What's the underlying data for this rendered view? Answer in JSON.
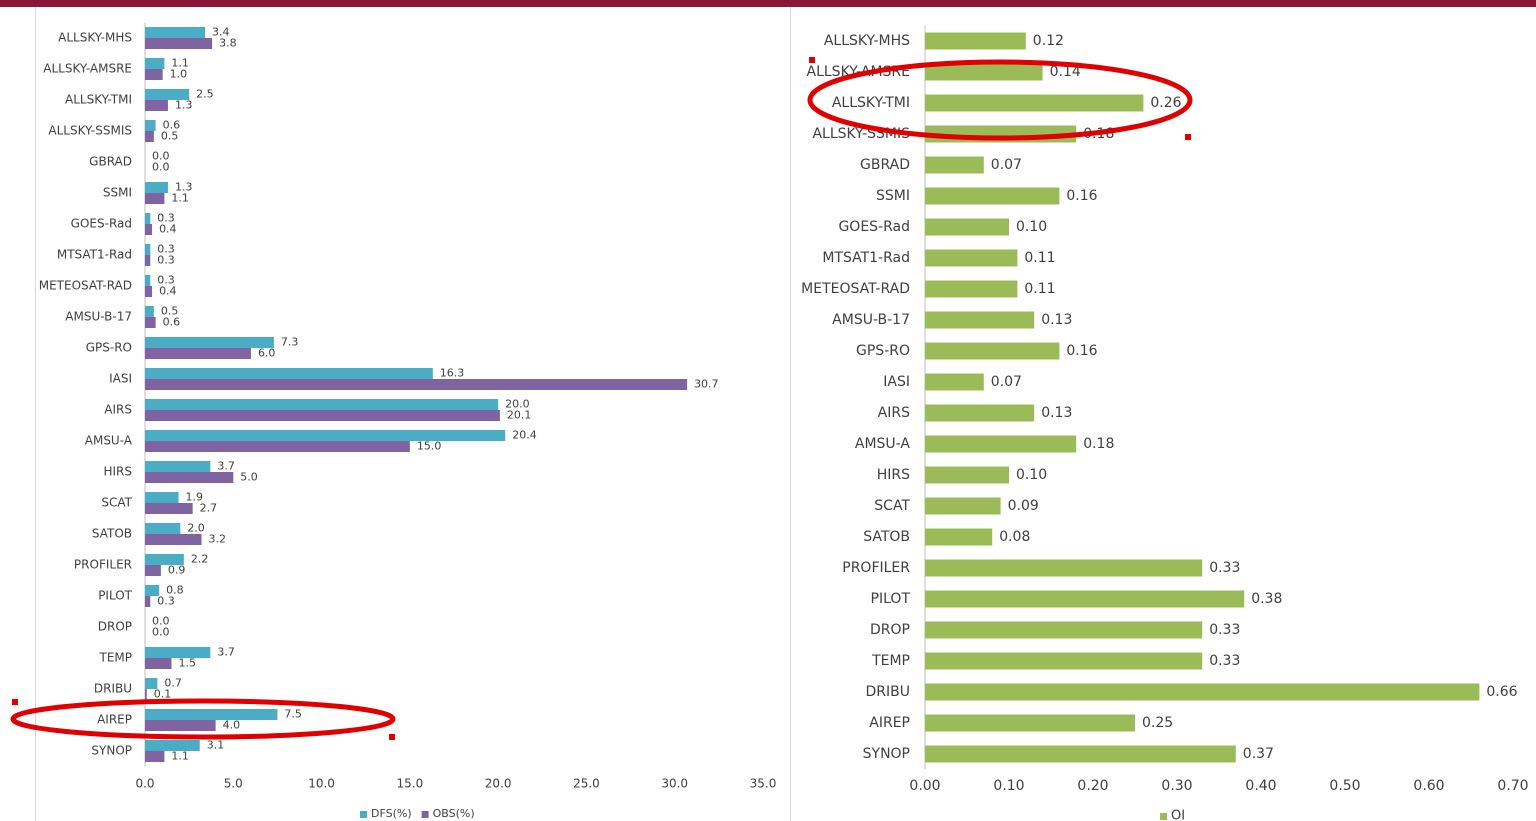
{
  "chart_data": [
    {
      "type": "barh",
      "categories": [
        "ALLSKY-MHS",
        "ALLSKY-AMSRE",
        "ALLSKY-TMI",
        "ALLSKY-SSMIS",
        "GBRAD",
        "SSMI",
        "GOES-Rad",
        "MTSAT1-Rad",
        "METEOSAT-RAD",
        "AMSU-B-17",
        "GPS-RO",
        "IASI",
        "AIRS",
        "AMSU-A",
        "HIRS",
        "SCAT",
        "SATOB",
        "PROFILER",
        "PILOT",
        "DROP",
        "TEMP",
        "DRIBU",
        "AIREP",
        "SYNOP"
      ],
      "series": [
        {
          "name": "DFS(%)",
          "color": "#4bacc6",
          "values": [
            3.4,
            1.1,
            2.5,
            0.6,
            0,
            1.3,
            0.3,
            0.3,
            0.3,
            0.5,
            7.3,
            16.3,
            20,
            20.4,
            3.7,
            1.9,
            2,
            2.2,
            0.8,
            0,
            3.7,
            0.7,
            7.5,
            3.1
          ],
          "value_labels": [
            "3.4",
            "1.1",
            "2.5",
            "0.6",
            "0.0",
            "1.3",
            "0.3",
            "0.3",
            "0.3",
            "0.5",
            "7.3",
            "16.3",
            "20.0",
            "20.4",
            "3.7",
            "1.9",
            "2.0",
            "2.2",
            "0.8",
            "0.0",
            "3.7",
            "0.7",
            "7.5",
            "3.1"
          ]
        },
        {
          "name": "OBS(%)",
          "color": "#8064a2",
          "values": [
            3.8,
            1,
            1.3,
            0.5,
            0,
            1.1,
            0.4,
            0.3,
            0.4,
            0.6,
            6,
            30.7,
            20.1,
            15,
            5,
            2.7,
            3.2,
            0.9,
            0.3,
            0,
            1.5,
            0.1,
            4,
            1.1
          ],
          "value_labels": [
            "3.8",
            "1.0",
            "1.3",
            "0.5",
            "0.0",
            "1.1",
            "0.4",
            "0.3",
            "0.4",
            "0.6",
            "6.0",
            "30.7",
            "20.1",
            "15.0",
            "5.0",
            "2.7",
            "3.2",
            "0.9",
            "0.3",
            "0.0",
            "1.5",
            "0.1",
            "4.0",
            "1.1"
          ]
        }
      ],
      "xlim": [
        0,
        35
      ],
      "xticks": [
        {
          "value": 0,
          "label": "0.0"
        },
        {
          "value": 5,
          "label": "5.0"
        },
        {
          "value": 10,
          "label": "10.0"
        },
        {
          "value": 15,
          "label": "15.0"
        },
        {
          "value": 20,
          "label": "20.0"
        },
        {
          "value": 25,
          "label": "25.0"
        },
        {
          "value": 30,
          "label": "30.0"
        },
        {
          "value": 35,
          "label": "35.0"
        }
      ],
      "legend": "bottom"
    },
    {
      "type": "barh",
      "categories": [
        "ALLSKY-MHS",
        "ALLSKY-AMSRE",
        "ALLSKY-TMI",
        "ALLSKY-SSMIS",
        "GBRAD",
        "SSMI",
        "GOES-Rad",
        "MTSAT1-Rad",
        "METEOSAT-RAD",
        "AMSU-B-17",
        "GPS-RO",
        "IASI",
        "AIRS",
        "AMSU-A",
        "HIRS",
        "SCAT",
        "SATOB",
        "PROFILER",
        "PILOT",
        "DROP",
        "TEMP",
        "DRIBU",
        "AIREP",
        "SYNOP"
      ],
      "series": [
        {
          "name": "OI",
          "color": "#9bbb59",
          "values": [
            0.12,
            0.14,
            0.26,
            0.18,
            0.07,
            0.16,
            0.1,
            0.11,
            0.11,
            0.13,
            0.16,
            0.07,
            0.13,
            0.18,
            0.1,
            0.09,
            0.08,
            0.33,
            0.38,
            0.33,
            0.33,
            0.66,
            0.25,
            0.37
          ],
          "value_labels": [
            "0.12",
            "0.14",
            "0.26",
            "0.18",
            "0.07",
            "0.16",
            "0.10",
            "0.11",
            "0.11",
            "0.13",
            "0.16",
            "0.07",
            "0.13",
            "0.18",
            "0.10",
            "0.09",
            "0.08",
            "0.33",
            "0.38",
            "0.33",
            "0.33",
            "0.66",
            "0.25",
            "0.37"
          ]
        }
      ],
      "xlim": [
        0,
        0.7
      ],
      "xticks": [
        {
          "value": 0,
          "label": "0.00"
        },
        {
          "value": 0.1,
          "label": "0.10"
        },
        {
          "value": 0.2,
          "label": "0.20"
        },
        {
          "value": 0.3,
          "label": "0.30"
        },
        {
          "value": 0.4,
          "label": "0.40"
        },
        {
          "value": 0.5,
          "label": "0.50"
        },
        {
          "value": 0.6,
          "label": "0.60"
        },
        {
          "value": 0.7,
          "label": "0.70"
        }
      ],
      "legend": "bottom"
    }
  ]
}
